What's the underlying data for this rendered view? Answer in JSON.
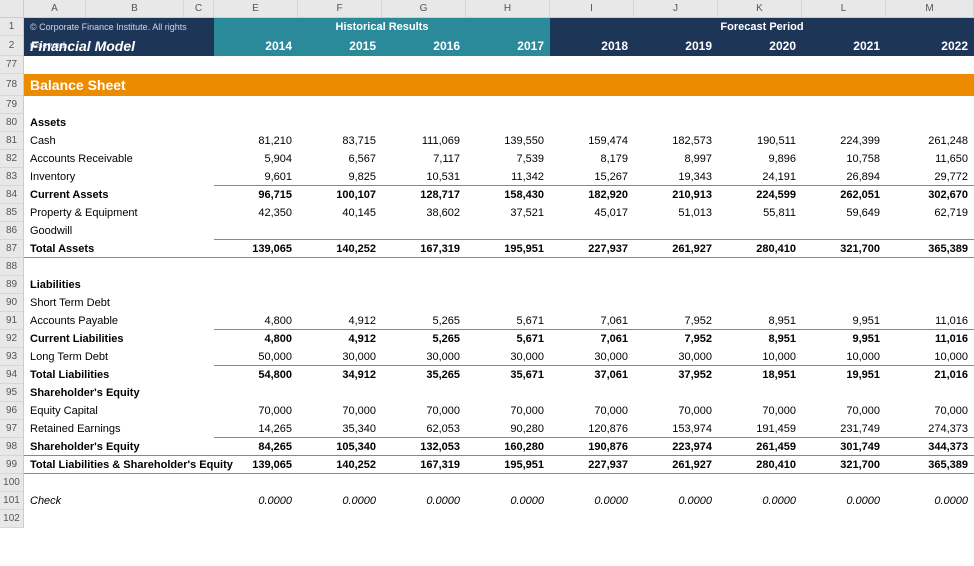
{
  "copyright": "© Corporate Finance Institute. All rights reserved.",
  "model_title": "Financial Model",
  "header_groups": {
    "historical": "Historical Results",
    "forecast": "Forecast Period"
  },
  "years": [
    "2014",
    "2015",
    "2016",
    "2017",
    "2018",
    "2019",
    "2020",
    "2021",
    "2022"
  ],
  "col_letters": [
    "A",
    "B",
    "C",
    "E",
    "F",
    "G",
    "H",
    "I",
    "J",
    "K",
    "L",
    "M"
  ],
  "col_widths_class": [
    "w-A",
    "w-B",
    "w-C",
    "w-E",
    "w-F",
    "w-G",
    "w-H",
    "w-I",
    "w-J",
    "w-K",
    "w-L",
    "w-M"
  ],
  "row_numbers_first2": [
    "1",
    "2"
  ],
  "row_numbers_rest": [
    "77",
    "78",
    "79",
    "80",
    "81",
    "82",
    "83",
    "84",
    "85",
    "86",
    "87",
    "88",
    "89",
    "90",
    "91",
    "92",
    "93",
    "94",
    "95",
    "96",
    "97",
    "98",
    "99",
    "100",
    "101",
    "102"
  ],
  "section_title": "Balance Sheet",
  "rows": [
    {
      "row": "79",
      "type": "blank"
    },
    {
      "row": "80",
      "type": "heading",
      "label": "Assets"
    },
    {
      "row": "81",
      "type": "data",
      "label": "Cash",
      "values": [
        "81,210",
        "83,715",
        "111,069",
        "139,550",
        "159,474",
        "182,573",
        "190,511",
        "224,399",
        "261,248"
      ]
    },
    {
      "row": "82",
      "type": "data",
      "label": "Accounts Receivable",
      "values": [
        "5,904",
        "6,567",
        "7,117",
        "7,539",
        "8,179",
        "8,997",
        "9,896",
        "10,758",
        "11,650"
      ]
    },
    {
      "row": "83",
      "type": "data",
      "label": "Inventory",
      "values": [
        "9,601",
        "9,825",
        "10,531",
        "11,342",
        "15,267",
        "19,343",
        "24,191",
        "26,894",
        "29,772"
      ],
      "border": "bb"
    },
    {
      "row": "84",
      "type": "subtotal",
      "label": "Current Assets",
      "values": [
        "96,715",
        "100,107",
        "128,717",
        "158,430",
        "182,920",
        "210,913",
        "224,599",
        "262,051",
        "302,670"
      ]
    },
    {
      "row": "85",
      "type": "data",
      "label": "Property & Equipment",
      "values": [
        "42,350",
        "40,145",
        "38,602",
        "37,521",
        "45,017",
        "51,013",
        "55,811",
        "59,649",
        "62,719"
      ]
    },
    {
      "row": "86",
      "type": "data",
      "label": "Goodwill",
      "values": [
        "",
        "",
        "",
        "",
        "",
        "",
        "",
        "",
        ""
      ],
      "border": "bb"
    },
    {
      "row": "87",
      "type": "total",
      "label": "Total Assets",
      "values": [
        "139,065",
        "140,252",
        "167,319",
        "195,951",
        "227,937",
        "261,927",
        "280,410",
        "321,700",
        "365,389"
      ],
      "border": "bb"
    },
    {
      "row": "88",
      "type": "blank"
    },
    {
      "row": "89",
      "type": "heading",
      "label": "Liabilities"
    },
    {
      "row": "90",
      "type": "data",
      "label": "Short Term Debt",
      "values": [
        "",
        "",
        "",
        "",
        "",
        "",
        "",
        "",
        ""
      ]
    },
    {
      "row": "91",
      "type": "data",
      "label": "Accounts Payable",
      "values": [
        "4,800",
        "4,912",
        "5,265",
        "5,671",
        "7,061",
        "7,952",
        "8,951",
        "9,951",
        "11,016"
      ],
      "border": "bb"
    },
    {
      "row": "92",
      "type": "subtotal",
      "label": "Current Liabilities",
      "values": [
        "4,800",
        "4,912",
        "5,265",
        "5,671",
        "7,061",
        "7,952",
        "8,951",
        "9,951",
        "11,016"
      ]
    },
    {
      "row": "93",
      "type": "data",
      "label": "Long Term Debt",
      "values": [
        "50,000",
        "30,000",
        "30,000",
        "30,000",
        "30,000",
        "30,000",
        "10,000",
        "10,000",
        "10,000"
      ],
      "border": "bb"
    },
    {
      "row": "94",
      "type": "total",
      "label": "Total Liabilities",
      "values": [
        "54,800",
        "34,912",
        "35,265",
        "35,671",
        "37,061",
        "37,952",
        "18,951",
        "19,951",
        "21,016"
      ]
    },
    {
      "row": "95",
      "type": "heading",
      "label": "Shareholder's Equity"
    },
    {
      "row": "96",
      "type": "data",
      "label": "Equity Capital",
      "values": [
        "70,000",
        "70,000",
        "70,000",
        "70,000",
        "70,000",
        "70,000",
        "70,000",
        "70,000",
        "70,000"
      ]
    },
    {
      "row": "97",
      "type": "data",
      "label": "Retained Earnings",
      "values": [
        "14,265",
        "35,340",
        "62,053",
        "90,280",
        "120,876",
        "153,974",
        "191,459",
        "231,749",
        "274,373"
      ],
      "border": "bb"
    },
    {
      "row": "98",
      "type": "subtotal",
      "label": "Shareholder's Equity",
      "values": [
        "84,265",
        "105,340",
        "132,053",
        "160,280",
        "190,876",
        "223,974",
        "261,459",
        "301,749",
        "344,373"
      ],
      "border": "bb"
    },
    {
      "row": "99",
      "type": "grandtotal",
      "label": "Total Liabilities & Shareholder's Equity",
      "values": [
        "139,065",
        "140,252",
        "167,319",
        "195,951",
        "227,937",
        "261,927",
        "280,410",
        "321,700",
        "365,389"
      ],
      "border": "bb"
    },
    {
      "row": "100",
      "type": "blank"
    },
    {
      "row": "101",
      "type": "check",
      "label": "Check",
      "values": [
        "0.0000",
        "0.0000",
        "0.0000",
        "0.0000",
        "0.0000",
        "0.0000",
        "0.0000",
        "0.0000",
        "0.0000"
      ]
    },
    {
      "row": "102",
      "type": "blank"
    }
  ],
  "colors": {
    "header_navy": "#1d3557",
    "header_teal": "#2a8a99",
    "section_orange": "#ed8b00",
    "rowhdr_bg": "#e8e8e8"
  }
}
